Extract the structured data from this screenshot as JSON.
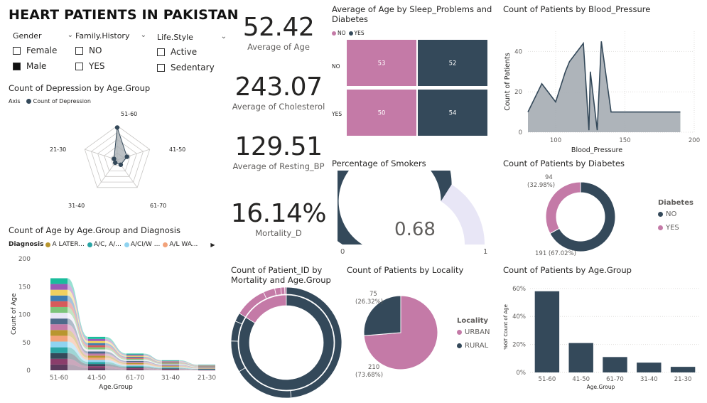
{
  "page_title": "HEART PATIENTS IN PAKISTAN",
  "colors": {
    "dark": "#34495a",
    "pink": "#c47aa7",
    "gray": "#a5acb2",
    "lavender": "#e8e6f6"
  },
  "slicers": [
    {
      "header": "Gender",
      "items": [
        {
          "label": "Female",
          "checked": false
        },
        {
          "label": "Male",
          "checked": true
        }
      ]
    },
    {
      "header": "Family.History",
      "items": [
        {
          "label": "NO",
          "checked": false
        },
        {
          "label": "YES",
          "checked": false
        }
      ]
    },
    {
      "header": "Life.Style",
      "items": [
        {
          "label": "Active",
          "checked": false
        },
        {
          "label": "Sedentary",
          "checked": false
        }
      ]
    }
  ],
  "kpis": [
    {
      "value": "52.42",
      "label": "Average of Age"
    },
    {
      "value": "243.07",
      "label": "Average of Cholesterol"
    },
    {
      "value": "129.51",
      "label": "Average of Resting_BP"
    },
    {
      "value": "16.14%",
      "label": "Mortality_D"
    }
  ],
  "radar": {
    "title": "Count of Depression by Age.Group",
    "legend_axis": "Axis",
    "legend_series": "Count of Depression",
    "labels": [
      "51-60",
      "41-50",
      "61-70",
      "31-40",
      "21-30"
    ]
  },
  "ribbon": {
    "title": "Count of Age by Age.Group and Diagnosis",
    "legend_title": "Diagnosis",
    "legend_items": [
      {
        "label": "A LATER...",
        "color": "#b8962e"
      },
      {
        "label": "A/C, A/...",
        "color": "#2aa5a5"
      },
      {
        "label": "A/CI/W ...",
        "color": "#8fd3f0"
      },
      {
        "label": "A/L WA...",
        "color": "#f2a27a"
      }
    ],
    "xlabel": "Age.Group",
    "ylabel": "Count of Age",
    "yticks": [
      "200",
      "150",
      "100",
      "50",
      "0"
    ]
  },
  "heatmap": {
    "title": "Average of Age by Sleep_Problems and Diabetes",
    "legend": [
      "NO",
      "YES"
    ],
    "rows": [
      "NO",
      "YES"
    ]
  },
  "gauge": {
    "title": "Percentage of Smokers",
    "value": "0.68",
    "min": "0",
    "max": "1"
  },
  "sunburst": {
    "title": "Count of Patient_ID by Mortality and Age.Group"
  },
  "locality": {
    "title": "Count of Patients by Locality",
    "legend_title": "Locality",
    "legend": [
      "URBAN",
      "RURAL"
    ],
    "label_urban_count": "210",
    "label_urban_pct": "(73.68%)",
    "label_rural_count": "75",
    "label_rural_pct": "(26.32%)"
  },
  "bp": {
    "title": "Count of Patients by Blood_Pressure",
    "xlabel": "Blood_Pressure",
    "ylabel": "Count of Patients",
    "xticks": [
      "100",
      "150",
      "200"
    ],
    "yticks": [
      "40",
      "20",
      "0"
    ]
  },
  "diabetes": {
    "title": "Count of Patients by Diabetes",
    "legend_title": "Diabetes",
    "legend": [
      "NO",
      "YES"
    ],
    "label_yes_count": "94",
    "label_yes_pct": "(32.98%)",
    "label_no": "191 (67.02%)"
  },
  "agegroup": {
    "title": "Count of Patients by Age.Group",
    "xlabel": "Age.Group",
    "ylabel": "%GT Count of Age",
    "yticks": [
      "60%",
      "40%",
      "20%",
      "0%"
    ]
  },
  "chart_data": [
    {
      "type": "heatmap",
      "title": "Average of Age by Sleep_Problems and Diabetes",
      "rows": [
        "NO",
        "YES"
      ],
      "columns": [
        "NO",
        "YES"
      ],
      "values": [
        [
          53,
          52
        ],
        [
          50,
          54
        ]
      ]
    },
    {
      "type": "area",
      "title": "Count of Patients by Blood_Pressure",
      "xlabel": "Blood_Pressure",
      "ylabel": "Count of Patients",
      "x": [
        80,
        90,
        100,
        107,
        110,
        120,
        124,
        125,
        130,
        133,
        140,
        190
      ],
      "y": [
        10,
        24,
        15,
        30,
        35,
        44,
        1,
        30,
        1,
        45,
        10,
        10
      ],
      "xlim": [
        80,
        200
      ],
      "ylim": [
        0,
        50
      ]
    },
    {
      "type": "pie",
      "title": "Count of Patients by Diabetes",
      "categories": [
        "NO",
        "YES"
      ],
      "values": [
        191,
        94
      ]
    },
    {
      "type": "pie",
      "title": "Count of Patients by Locality",
      "categories": [
        "URBAN",
        "RURAL"
      ],
      "values": [
        210,
        75
      ]
    },
    {
      "type": "bar",
      "title": "Count of Patients by Age.Group",
      "categories": [
        "51-60",
        "41-50",
        "61-70",
        "31-40",
        "21-30"
      ],
      "values": [
        58,
        21,
        11,
        7,
        4
      ],
      "xlabel": "Age.Group",
      "ylabel": "%GT Count of Age",
      "ylim": [
        0,
        65
      ]
    },
    {
      "type": "bar",
      "title": "Count of Age by Age.Group and Diagnosis",
      "categories": [
        "51-60",
        "41-50",
        "61-70",
        "31-40",
        "21-30"
      ],
      "values": [
        165,
        60,
        30,
        18,
        10
      ],
      "xlabel": "Age.Group",
      "ylabel": "Count of Age",
      "ylim": [
        0,
        200
      ]
    },
    {
      "type": "radar",
      "title": "Count of Depression by Age.Group",
      "categories": [
        "51-60",
        "41-50",
        "61-70",
        "31-40",
        "21-30"
      ],
      "values": [
        38,
        12,
        7,
        4,
        4
      ]
    },
    {
      "type": "gauge",
      "title": "Percentage of Smokers",
      "values": [
        0.68
      ],
      "ylim": [
        0,
        1
      ]
    }
  ]
}
